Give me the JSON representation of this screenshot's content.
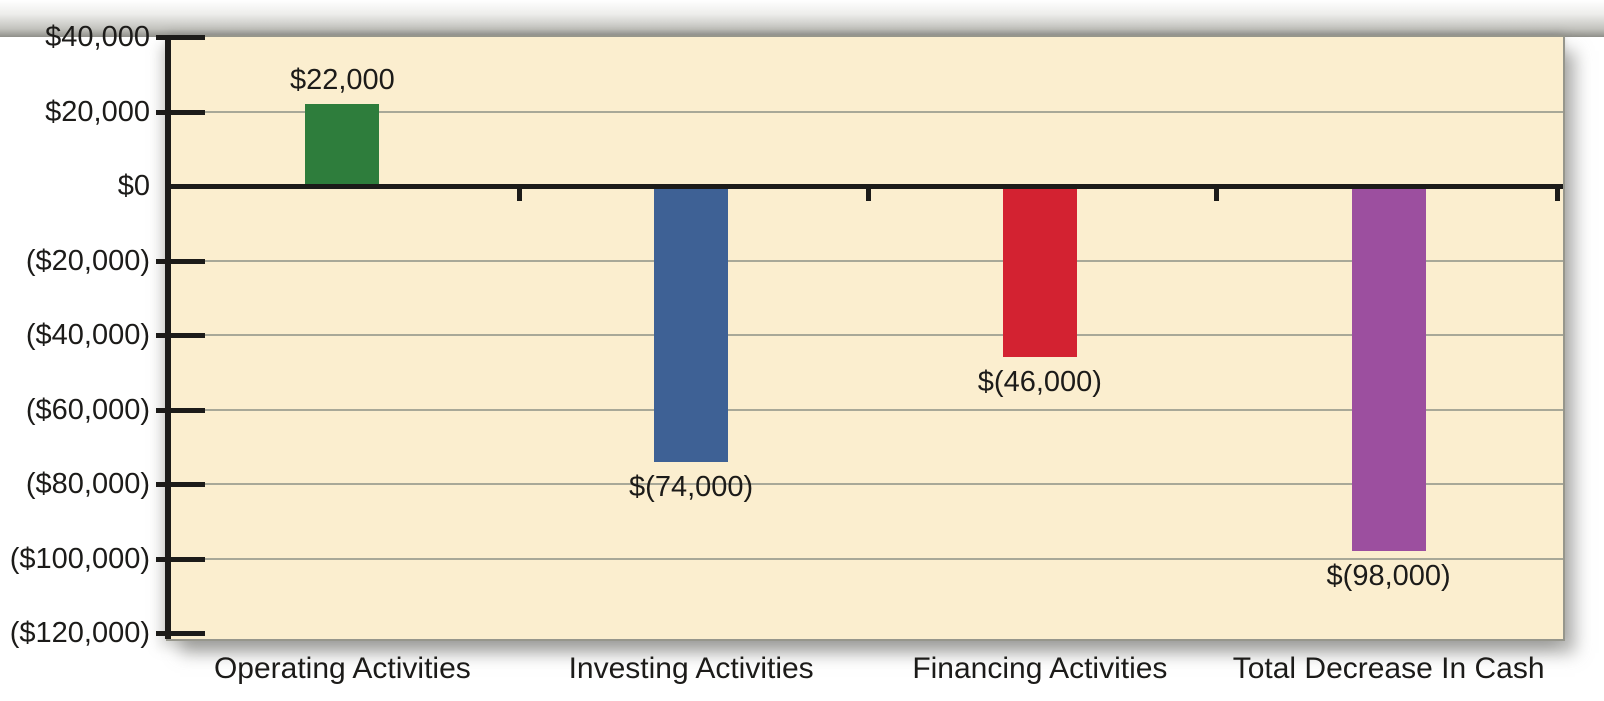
{
  "chart_data": {
    "type": "bar",
    "categories": [
      "Operating Activities",
      "Investing Activities",
      "Financing Activities",
      "Total Decrease In Cash"
    ],
    "values": [
      22000,
      -74000,
      -46000,
      -98000
    ],
    "bar_labels": [
      "$22,000",
      "$(74,000)",
      "$(46,000)",
      "$(98,000)"
    ],
    "bar_colors": [
      "#2E7D3C",
      "#3E6195",
      "#D32231",
      "#9C4F9F"
    ],
    "y_tick_labels": [
      "$40,000",
      "$20,000",
      "$0",
      "($20,000)",
      "($40,000)",
      "($60,000)",
      "($80,000)",
      "($100,000)",
      "($120,000)"
    ],
    "y_tick_values": [
      40000,
      20000,
      0,
      -20000,
      -40000,
      -60000,
      -80000,
      -100000,
      -120000
    ],
    "ylim": [
      -120000,
      40000
    ],
    "grid": true,
    "legend": "none",
    "xlabel": "",
    "ylabel": "",
    "colors": {
      "page_bg": "#FFFFFF",
      "plot_bg": "#FBEECF",
      "gridline": "#A8A898",
      "axis": "#1C1B19",
      "text": "#1C1B19"
    }
  }
}
